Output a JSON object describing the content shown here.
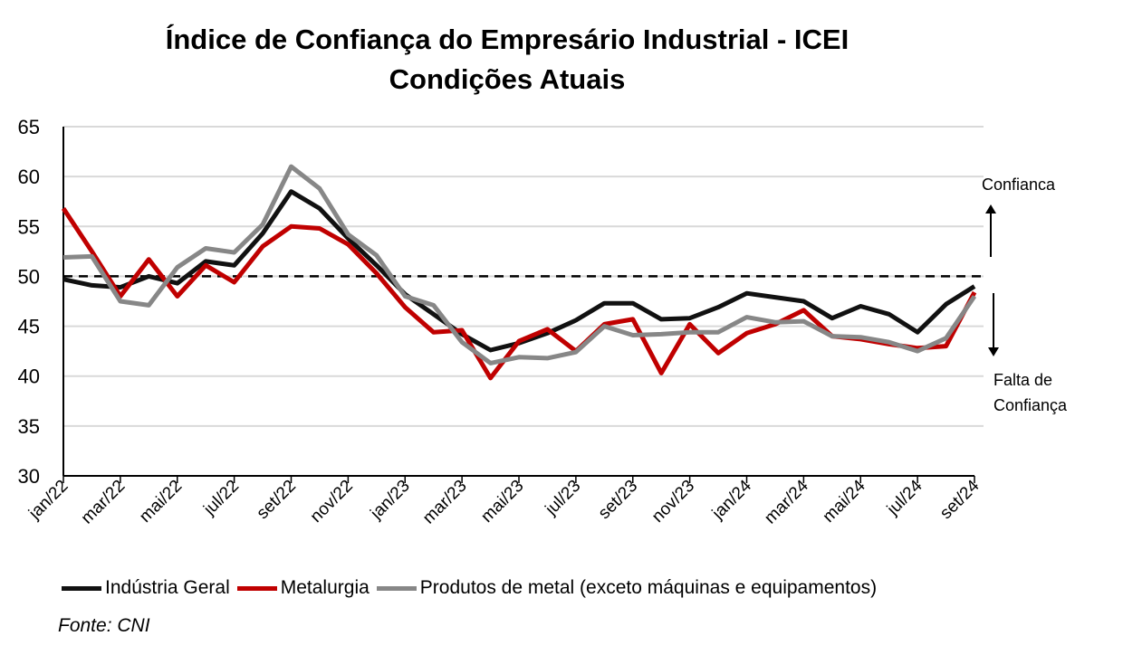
{
  "chart_data": {
    "type": "line",
    "title": "Índice de Confiança do Empresário Industrial - ICEI",
    "subtitle": "Condições Atuais",
    "xlabel": "",
    "ylabel": "",
    "ylim": [
      30,
      65
    ],
    "yticks": [
      30,
      35,
      40,
      45,
      50,
      55,
      60,
      65
    ],
    "grid": true,
    "reference_line": 50,
    "x": [
      "jan/22",
      "fev/22",
      "mar/22",
      "abr/22",
      "mai/22",
      "jun/22",
      "jul/22",
      "ago/22",
      "set/22",
      "out/22",
      "nov/22",
      "dez/22",
      "jan/23",
      "fev/23",
      "mar/23",
      "abr/23",
      "mai/23",
      "jun/23",
      "jul/23",
      "ago/23",
      "set/23",
      "out/23",
      "nov/23",
      "dez/23",
      "jan/24",
      "fev/24",
      "mar/24",
      "abr/24",
      "mai/24",
      "jun/24",
      "jul/24",
      "ago/24",
      "set/24"
    ],
    "xtick_labels": [
      "jan/22",
      "mar/22",
      "mai/22",
      "jul/22",
      "set/22",
      "nov/22",
      "jan/23",
      "mar/23",
      "mai/23",
      "jul/23",
      "set/23",
      "nov/23",
      "jan/24",
      "mar/24",
      "mai/24",
      "jul/24",
      "set/24"
    ],
    "series": [
      {
        "name": "Indústria Geral",
        "color": "#111111",
        "values": [
          49.7,
          49.1,
          48.9,
          50.0,
          49.3,
          51.5,
          51.1,
          54.3,
          58.5,
          56.8,
          53.8,
          51.1,
          48.2,
          46.2,
          44.2,
          42.6,
          43.3,
          44.3,
          45.6,
          47.3,
          47.3,
          45.7,
          45.8,
          46.9,
          48.3,
          47.9,
          47.5,
          45.8,
          47.0,
          46.2,
          44.4,
          47.2,
          49.0
        ]
      },
      {
        "name": "Metalurgia",
        "color": "#C00000",
        "values": [
          56.8,
          52.5,
          48.0,
          51.7,
          48.0,
          51.1,
          49.4,
          53.0,
          55.0,
          54.8,
          53.2,
          50.3,
          46.9,
          44.4,
          44.6,
          39.8,
          43.5,
          44.7,
          42.5,
          45.2,
          45.7,
          40.3,
          45.2,
          42.3,
          44.3,
          45.2,
          46.6,
          44.0,
          43.7,
          43.2,
          42.8,
          43.0,
          48.4
        ]
      },
      {
        "name": "Produtos de metal (exceto máquinas e equipamentos)",
        "color": "#878787",
        "values": [
          51.9,
          52.0,
          47.5,
          47.1,
          50.9,
          52.8,
          52.4,
          55.2,
          61.0,
          58.8,
          54.2,
          52.1,
          48.0,
          47.1,
          43.4,
          41.3,
          41.9,
          41.8,
          42.4,
          45.0,
          44.1,
          44.2,
          44.4,
          44.4,
          45.9,
          45.4,
          45.5,
          44.0,
          43.9,
          43.4,
          42.5,
          43.8,
          48.0
        ]
      }
    ],
    "annotations": {
      "up": "Confianca",
      "down_line1": "Falta de",
      "down_line2": "Confiança"
    },
    "legend_position": "bottom"
  },
  "source": "Fonte: CNI"
}
